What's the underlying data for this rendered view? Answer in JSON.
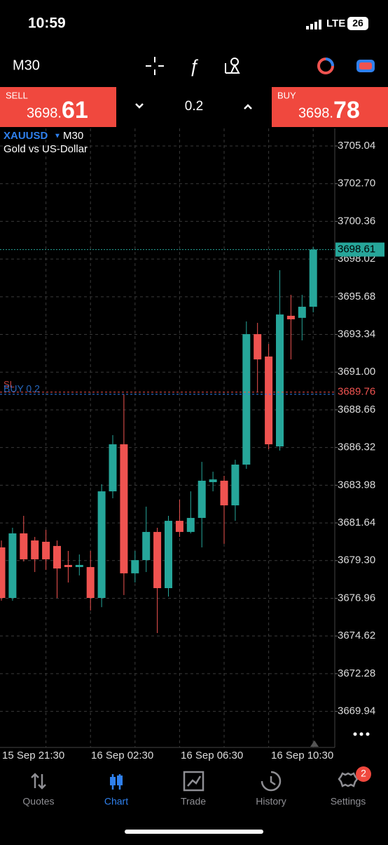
{
  "status_bar": {
    "time": "10:59",
    "network": "LTE",
    "battery": "26"
  },
  "toolbar": {
    "timeframe": "M30"
  },
  "trade_panel": {
    "sell": {
      "label": "SELL",
      "price_main": "3698.",
      "price_big": "61"
    },
    "volume": "0.2",
    "buy": {
      "label": "BUY",
      "price_main": "3698.",
      "price_big": "78"
    }
  },
  "chart_data": {
    "type": "candlestick",
    "symbol": "XAUUSD",
    "timeframe": "M30",
    "description": "Gold vs US-Dollar",
    "up_color": "#26a69a",
    "down_color": "#ef5350",
    "grid": true,
    "candles": [
      {
        "open": 3680.12,
        "high": 3680.55,
        "low": 3676.81,
        "close": 3676.98
      },
      {
        "open": 3676.98,
        "high": 3681.34,
        "low": 3676.81,
        "close": 3680.99
      },
      {
        "open": 3680.99,
        "high": 3682.08,
        "low": 3679.25,
        "close": 3679.38
      },
      {
        "open": 3680.55,
        "high": 3680.77,
        "low": 3678.59,
        "close": 3679.38
      },
      {
        "open": 3680.47,
        "high": 3681.21,
        "low": 3678.72,
        "close": 3679.38
      },
      {
        "open": 3680.21,
        "high": 3680.55,
        "low": 3676.98,
        "close": 3678.81
      },
      {
        "open": 3679.03,
        "high": 3679.9,
        "low": 3677.94,
        "close": 3678.9
      },
      {
        "open": 3678.9,
        "high": 3679.68,
        "low": 3678.38,
        "close": 3679.03
      },
      {
        "open": 3678.9,
        "high": 3679.9,
        "low": 3676.2,
        "close": 3676.98
      },
      {
        "open": 3676.98,
        "high": 3684.04,
        "low": 3676.41,
        "close": 3683.6
      },
      {
        "open": 3683.6,
        "high": 3687.09,
        "low": 3683.17,
        "close": 3686.52
      },
      {
        "open": 3686.52,
        "high": 3689.62,
        "low": 3677.16,
        "close": 3678.51
      },
      {
        "open": 3678.51,
        "high": 3679.9,
        "low": 3677.94,
        "close": 3679.33
      },
      {
        "open": 3679.33,
        "high": 3682.65,
        "low": 3678.59,
        "close": 3681.08
      },
      {
        "open": 3681.08,
        "high": 3681.34,
        "low": 3674.8,
        "close": 3677.59
      },
      {
        "open": 3677.59,
        "high": 3682.08,
        "low": 3677.07,
        "close": 3681.77
      },
      {
        "open": 3681.77,
        "high": 3683.08,
        "low": 3680.77,
        "close": 3681.08
      },
      {
        "open": 3681.08,
        "high": 3683.6,
        "low": 3680.99,
        "close": 3681.95
      },
      {
        "open": 3681.95,
        "high": 3685.43,
        "low": 3680.12,
        "close": 3684.26
      },
      {
        "open": 3684.17,
        "high": 3684.82,
        "low": 3683.6,
        "close": 3684.34
      },
      {
        "open": 3684.26,
        "high": 3684.56,
        "low": 3680.34,
        "close": 3682.73
      },
      {
        "open": 3682.73,
        "high": 3685.56,
        "low": 3681.77,
        "close": 3685.26
      },
      {
        "open": 3685.26,
        "high": 3694.15,
        "low": 3685.0,
        "close": 3693.36
      },
      {
        "open": 3693.36,
        "high": 3694.06,
        "low": 3689.79,
        "close": 3691.79
      },
      {
        "open": 3691.97,
        "high": 3692.75,
        "low": 3686.22,
        "close": 3686.52
      },
      {
        "open": 3686.39,
        "high": 3697.33,
        "low": 3686.13,
        "close": 3694.58
      },
      {
        "open": 3694.5,
        "high": 3695.8,
        "low": 3691.79,
        "close": 3694.28
      },
      {
        "open": 3694.37,
        "high": 3695.8,
        "low": 3692.97,
        "close": 3695.06
      },
      {
        "open": 3695.06,
        "high": 3698.77,
        "low": 3694.71,
        "close": 3698.61
      }
    ],
    "ylim": [
      3667.7,
      3706.13
    ],
    "yticks": [
      3705.04,
      {
        "value": 3702.7,
        "label": "3702.70"
      },
      3700.36,
      3698.02,
      3695.68,
      3693.34,
      {
        "value": 3691.0,
        "label": "3691.00"
      },
      3688.66,
      3686.32,
      3683.98,
      3681.64,
      {
        "value": 3679.3,
        "label": "3679.30"
      },
      3676.96,
      3674.62,
      3672.28,
      3669.94
    ],
    "x_labels": [
      "15 Sep 21:30",
      "16 Sep 02:30",
      "16 Sep 06:30",
      "16 Sep 10:30"
    ],
    "price_line": {
      "value": 3698.61,
      "color": "#26a69a"
    },
    "order_line": {
      "value": 3689.76,
      "color": "#ef5350",
      "label": "BUY 0.2",
      "sl_label": "SL"
    }
  },
  "nav": {
    "items": [
      "Quotes",
      "Chart",
      "Trade",
      "History",
      "Settings"
    ],
    "active": 1,
    "badge": "2"
  }
}
